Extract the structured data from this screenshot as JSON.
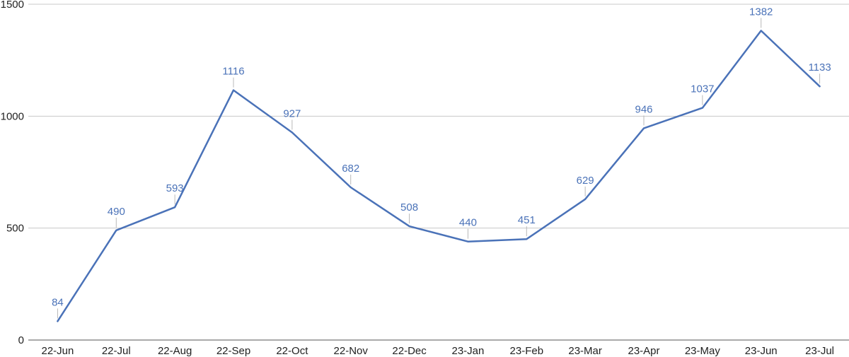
{
  "chart_data": {
    "type": "line",
    "title": "",
    "xlabel": "",
    "ylabel": "",
    "categories": [
      "22-Jun",
      "22-Jul",
      "22-Aug",
      "22-Sep",
      "22-Oct",
      "22-Nov",
      "22-Dec",
      "23-Jan",
      "23-Feb",
      "23-Mar",
      "23-Apr",
      "23-May",
      "23-Jun",
      "23-Jul"
    ],
    "series": [
      {
        "values": [
          84,
          490,
          593,
          1116,
          927,
          682,
          508,
          440,
          451,
          629,
          946,
          1037,
          1382,
          1133
        ],
        "color": "#4a72b8"
      }
    ],
    "ylim": [
      0,
      1500
    ],
    "yticks": [
      0,
      500,
      1000,
      1500
    ],
    "grid": true,
    "legend": "none",
    "data_labels": true
  }
}
